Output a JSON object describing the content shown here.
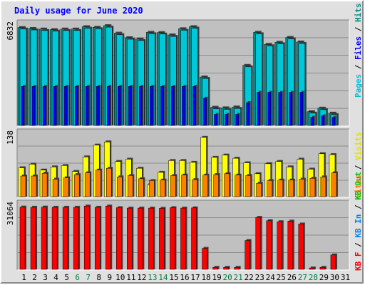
{
  "title": "Daily usage for June 2020",
  "colors": {
    "hits": "#00c0d0",
    "hits_legend": "#008c8c",
    "files": "#0000ff",
    "pages": "#00c8d8",
    "sites": "#ff8000",
    "visits": "#ffff00",
    "kbf": "#ff0000",
    "kbin": "#0080ff",
    "kbout": "#00c000",
    "panel_bg": "#c0c0c0",
    "frame_bg": "#e0e0e0"
  },
  "panels": {
    "top": {
      "max_label": "6832",
      "legend": [
        {
          "text": "Hits",
          "color": "#008c8c"
        },
        {
          "text": "Files",
          "color": "#0000ff"
        },
        {
          "text": "Pages",
          "color": "#00c0d0"
        }
      ]
    },
    "mid": {
      "max_label": "138",
      "legend": [
        {
          "text": "Visits",
          "color": "#e0e000"
        },
        {
          "text": "Sites",
          "color": "#ff8000"
        }
      ]
    },
    "bot": {
      "max_label": "31064",
      "legend": [
        {
          "text": "KB Out",
          "color": "#00c000"
        },
        {
          "text": "KB In",
          "color": "#0080ff"
        },
        {
          "text": "KB F",
          "color": "#ff0000"
        }
      ]
    }
  },
  "chart_data": {
    "type": "bar",
    "title": "Daily usage for June 2020",
    "categories": [
      "1",
      "2",
      "3",
      "4",
      "5",
      "6",
      "7",
      "8",
      "9",
      "10",
      "11",
      "12",
      "13",
      "14",
      "15",
      "16",
      "17",
      "18",
      "19",
      "20",
      "21",
      "22",
      "23",
      "24",
      "25",
      "26",
      "27",
      "28",
      "29",
      "30",
      "31"
    ],
    "weekend_days": [
      "6",
      "7",
      "13",
      "14",
      "20",
      "21",
      "27",
      "28"
    ],
    "series": [
      {
        "name": "Hits",
        "values": [
          6700,
          6640,
          6600,
          6560,
          6600,
          6600,
          6760,
          6720,
          6830,
          6320,
          6010,
          5920,
          6380,
          6360,
          6200,
          6620,
          6760,
          3340,
          1280,
          1240,
          1300,
          4130,
          6380,
          5560,
          5700,
          6030,
          5720,
          980,
          1220,
          880,
          0
        ]
      },
      {
        "name": "Files",
        "values": [
          2700,
          2700,
          2700,
          2700,
          2700,
          2700,
          2700,
          2700,
          2700,
          2700,
          2700,
          2700,
          2700,
          2700,
          2700,
          2700,
          2700,
          1900,
          800,
          800,
          800,
          1600,
          2300,
          2300,
          2300,
          2300,
          2300,
          600,
          700,
          600,
          0
        ]
      },
      {
        "name": "Pages",
        "values": [
          6600,
          6540,
          6500,
          6460,
          6500,
          6500,
          6660,
          6620,
          6730,
          6220,
          5910,
          5820,
          6280,
          6260,
          6100,
          6520,
          6660,
          3240,
          1180,
          1140,
          1200,
          4030,
          6280,
          5460,
          5600,
          5930,
          5620,
          880,
          1120,
          780,
          0
        ]
      },
      {
        "name": "Visits",
        "values": [
          65,
          73,
          60,
          67,
          70,
          57,
          89,
          115,
          122,
          79,
          84,
          64,
          28,
          55,
          81,
          81,
          77,
          132,
          88,
          93,
          86,
          76,
          52,
          74,
          79,
          67,
          84,
          62,
          96,
          94,
          0
        ]
      },
      {
        "name": "Sites",
        "values": [
          47,
          47,
          53,
          40,
          43,
          50,
          54,
          60,
          64,
          45,
          48,
          41,
          37,
          38,
          48,
          49,
          39,
          49,
          50,
          52,
          49,
          48,
          31,
          37,
          38,
          38,
          40,
          42,
          45,
          54,
          0
        ]
      },
      {
        "name": "KB F",
        "values": [
          30500,
          30400,
          30500,
          30400,
          30400,
          30400,
          31000,
          30400,
          31000,
          30200,
          30000,
          30000,
          30000,
          29900,
          30200,
          30000,
          30100,
          10500,
          1300,
          1300,
          1300,
          14300,
          25500,
          23900,
          23400,
          23700,
          22300,
          1000,
          1300,
          7300,
          0
        ]
      }
    ],
    "ylim": {
      "top": [
        0,
        6832
      ],
      "mid": [
        0,
        138
      ],
      "bot": [
        0,
        31064
      ]
    }
  }
}
